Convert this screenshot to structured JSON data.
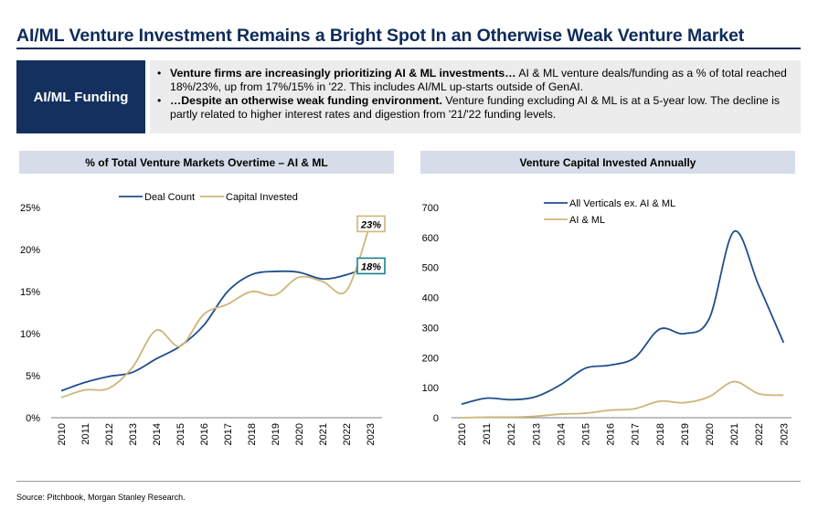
{
  "header": {
    "title": "AI/ML Venture Investment Remains a Bright Spot In an Otherwise Weak Venture Market"
  },
  "summary": {
    "label": "AI/ML Funding",
    "bullets": [
      {
        "bold": "Venture firms are increasingly prioritizing AI & ML investments…",
        "text": " AI & ML venture deals/funding as a % of total reached 18%/23%, up from 17%/15% in '22. This includes AI/ML up-starts outside of GenAI."
      },
      {
        "bold": "…Despite an otherwise weak funding environment.",
        "text": " Venture funding excluding AI & ML is at a 5-year low. The decline is partly related to higher interest rates and digestion from '21/'22 funding levels."
      }
    ]
  },
  "footer": {
    "source": "Source: Pitchbook, Morgan Stanley Research."
  },
  "colors": {
    "navy": "#13305e",
    "line_blue": "#1f4e8c",
    "line_gold": "#cdb67a"
  },
  "chart_data": [
    {
      "type": "line",
      "title": "% of Total Venture Markets Overtime – AI & ML",
      "categories": [
        "2010",
        "2011",
        "2012",
        "2013",
        "2014",
        "2015",
        "2016",
        "2017",
        "2018",
        "2019",
        "2020",
        "2021",
        "2022",
        "2023"
      ],
      "ylim": [
        0,
        25
      ],
      "yticks": [
        "0%",
        "5%",
        "10%",
        "15%",
        "20%",
        "25%"
      ],
      "legend_position": "top",
      "series": [
        {
          "name": "Deal Count",
          "color": "#1f4e8c",
          "values": [
            3.2,
            4.2,
            4.9,
            5.4,
            7.0,
            8.5,
            11.0,
            15.0,
            17.0,
            17.4,
            17.3,
            16.5,
            17.0,
            18.0
          ]
        },
        {
          "name": "Capital Invested",
          "color": "#cdb67a",
          "values": [
            2.4,
            3.3,
            3.5,
            6.0,
            10.4,
            8.5,
            12.3,
            13.5,
            15.0,
            14.6,
            16.7,
            16.2,
            15.1,
            23.0
          ]
        }
      ],
      "annotations": [
        "23%",
        "18%"
      ]
    },
    {
      "type": "line",
      "title": "Venture Capital Invested Annually",
      "categories": [
        "2010",
        "2011",
        "2012",
        "2013",
        "2014",
        "2015",
        "2016",
        "2017",
        "2018",
        "2019",
        "2020",
        "2021",
        "2022",
        "2023"
      ],
      "ylim": [
        0,
        700
      ],
      "yticks": [
        "0",
        "100",
        "200",
        "300",
        "400",
        "500",
        "600",
        "700"
      ],
      "legend_position": "top",
      "series": [
        {
          "name": "All Verticals ex. AI & ML",
          "color": "#1f4e8c",
          "values": [
            45,
            65,
            60,
            70,
            110,
            165,
            175,
            200,
            295,
            280,
            330,
            620,
            440,
            250
          ]
        },
        {
          "name": "AI & ML",
          "color": "#cdb67a",
          "values": [
            0,
            2,
            2,
            5,
            12,
            15,
            25,
            30,
            55,
            50,
            70,
            120,
            80,
            75
          ]
        }
      ]
    }
  ]
}
